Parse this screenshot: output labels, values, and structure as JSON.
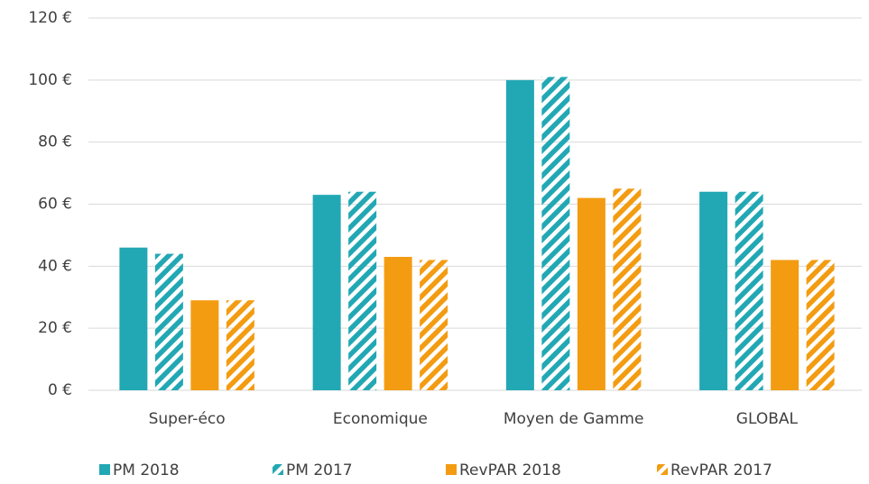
{
  "chart_data": {
    "type": "bar",
    "categories": [
      "Super-éco",
      "Economique",
      "Moyen de Gamme",
      "GLOBAL"
    ],
    "series": [
      {
        "name": "PM 2018",
        "color": "#22a8b4",
        "hatched": false,
        "values": [
          46,
          63,
          100,
          64
        ]
      },
      {
        "name": "PM 2017",
        "color": "#22a8b4",
        "hatched": true,
        "values": [
          44,
          64,
          101,
          64
        ]
      },
      {
        "name": "RevPAR 2018",
        "color": "#f39c12",
        "hatched": false,
        "values": [
          29,
          43,
          62,
          42
        ]
      },
      {
        "name": "RevPAR 2017",
        "color": "#f39c12",
        "hatched": true,
        "values": [
          29,
          42,
          65,
          42
        ]
      }
    ],
    "ylim": [
      0,
      120
    ],
    "yticks": [
      {
        "value": 0,
        "label": "0 €"
      },
      {
        "value": 20,
        "label": "20 €"
      },
      {
        "value": 40,
        "label": "40 €"
      },
      {
        "value": 60,
        "label": "60 €"
      },
      {
        "value": 80,
        "label": "80 €"
      },
      {
        "value": 100,
        "label": "100 €"
      },
      {
        "value": 120,
        "label": "120 €"
      }
    ],
    "grid": true,
    "legend": "bottom"
  }
}
